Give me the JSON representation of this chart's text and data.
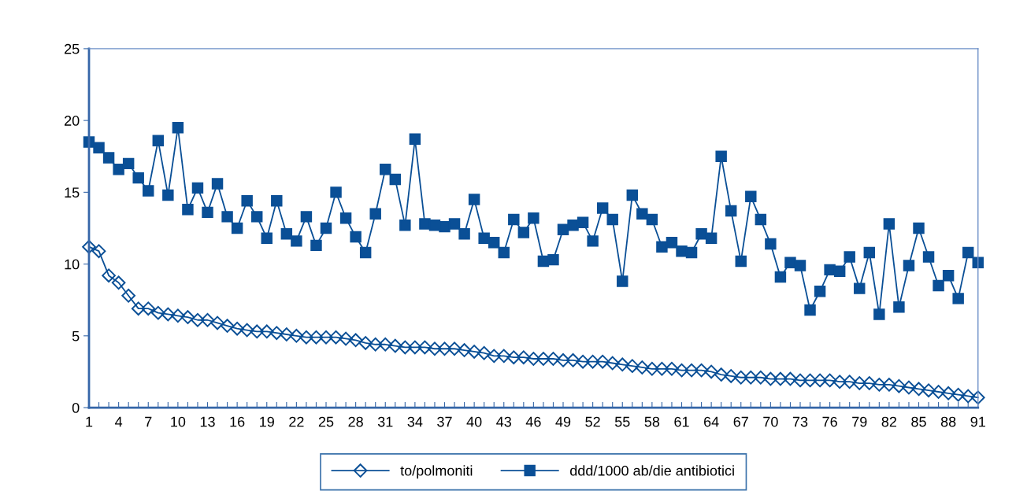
{
  "chart_data": {
    "type": "line",
    "categories": [
      "1",
      null,
      null,
      "4",
      null,
      null,
      "7",
      null,
      null,
      "10",
      null,
      null,
      "13",
      null,
      null,
      "16",
      null,
      null,
      "19",
      null,
      null,
      "22",
      null,
      null,
      "25",
      null,
      null,
      "28",
      null,
      null,
      "31",
      null,
      null,
      "34",
      null,
      null,
      "37",
      null,
      null,
      "40",
      null,
      null,
      "43",
      null,
      null,
      "46",
      null,
      null,
      "49",
      null,
      null,
      "52",
      null,
      null,
      "55",
      null,
      null,
      "58",
      null,
      null,
      "61",
      null,
      null,
      "64",
      null,
      null,
      "67",
      null,
      null,
      "70",
      null,
      null,
      "73",
      null,
      null,
      "76",
      null,
      null,
      "79",
      null,
      null,
      "82",
      null,
      null,
      "85",
      null,
      null,
      "88",
      null,
      null,
      "91"
    ],
    "series": [
      {
        "name": "to/polmoniti",
        "color": "#0a4f96",
        "marker": "diamond",
        "values": [
          11.2,
          10.9,
          9.2,
          8.7,
          7.8,
          6.9,
          6.9,
          6.6,
          6.5,
          6.4,
          6.3,
          6.1,
          6.1,
          5.9,
          5.7,
          5.5,
          5.4,
          5.3,
          5.3,
          5.2,
          5.1,
          5.0,
          4.9,
          4.9,
          4.9,
          4.9,
          4.8,
          4.7,
          4.5,
          4.4,
          4.4,
          4.3,
          4.2,
          4.2,
          4.2,
          4.1,
          4.1,
          4.1,
          4.0,
          3.9,
          3.8,
          3.6,
          3.6,
          3.5,
          3.5,
          3.4,
          3.4,
          3.4,
          3.3,
          3.3,
          3.2,
          3.2,
          3.2,
          3.1,
          3.0,
          2.9,
          2.8,
          2.7,
          2.7,
          2.7,
          2.6,
          2.6,
          2.6,
          2.5,
          2.3,
          2.2,
          2.1,
          2.1,
          2.1,
          2.0,
          2.0,
          2.0,
          1.9,
          1.9,
          1.9,
          1.9,
          1.8,
          1.8,
          1.7,
          1.7,
          1.6,
          1.6,
          1.5,
          1.4,
          1.3,
          1.2,
          1.1,
          1.0,
          0.9,
          0.8,
          0.7
        ]
      },
      {
        "name": "ddd/1000 ab/die antibiotici",
        "color": "#0a4f96",
        "marker": "square",
        "values": [
          18.5,
          18.1,
          17.4,
          16.6,
          17.0,
          16.0,
          15.1,
          18.6,
          14.8,
          19.5,
          13.8,
          15.3,
          13.6,
          15.6,
          13.3,
          12.5,
          14.4,
          13.3,
          11.8,
          14.4,
          12.1,
          11.6,
          13.3,
          11.3,
          12.5,
          15.0,
          13.2,
          11.9,
          10.8,
          13.5,
          16.6,
          15.9,
          12.7,
          18.7,
          12.8,
          12.7,
          12.6,
          12.8,
          12.1,
          14.5,
          11.8,
          11.5,
          10.8,
          13.1,
          12.2,
          13.2,
          10.2,
          10.3,
          12.4,
          12.7,
          12.9,
          11.6,
          13.9,
          13.1,
          8.8,
          14.8,
          13.5,
          13.1,
          11.2,
          11.5,
          10.9,
          10.8,
          12.1,
          11.8,
          17.5,
          13.7,
          10.2,
          14.7,
          13.1,
          11.4,
          9.1,
          10.1,
          9.9,
          6.8,
          8.1,
          9.6,
          9.5,
          10.5,
          8.3,
          10.8,
          6.5,
          12.8,
          7.0,
          9.9,
          12.5,
          10.5,
          8.5,
          9.2,
          7.6,
          10.8,
          10.1
        ]
      }
    ],
    "ylim": [
      0,
      25
    ],
    "yticks": [
      0,
      5,
      10,
      15,
      20,
      25
    ],
    "grid": false,
    "legend": "bottom",
    "line_style": "solid"
  }
}
